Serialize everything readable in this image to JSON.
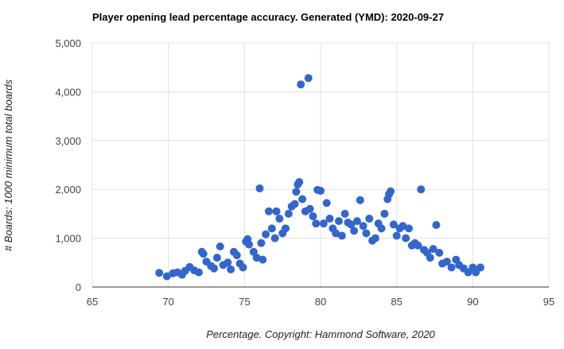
{
  "chart_data": {
    "type": "scatter",
    "title": "Player opening lead percentage accuracy. Generated (YMD): 2020-09-27",
    "xlabel": "Percentage. Copyright: Hammond Software, 2020",
    "ylabel": "# Boards: 1000 minimum total boards",
    "xlim": [
      65,
      95
    ],
    "ylim": [
      0,
      5000
    ],
    "x_ticks": [
      "65",
      "70",
      "75",
      "80",
      "85",
      "90",
      "95"
    ],
    "y_ticks": [
      "0",
      "1,000",
      "2,000",
      "3,000",
      "4,000",
      "5,000"
    ],
    "grid": true,
    "legend": "none",
    "point_color": "#3366cc",
    "points": [
      [
        69.4,
        290
      ],
      [
        69.9,
        220
      ],
      [
        70.3,
        280
      ],
      [
        70.6,
        300
      ],
      [
        70.9,
        250
      ],
      [
        71.1,
        330
      ],
      [
        71.4,
        410
      ],
      [
        71.7,
        340
      ],
      [
        72.0,
        300
      ],
      [
        72.2,
        720
      ],
      [
        72.3,
        680
      ],
      [
        72.5,
        520
      ],
      [
        72.8,
        430
      ],
      [
        73.0,
        380
      ],
      [
        73.2,
        600
      ],
      [
        73.4,
        830
      ],
      [
        73.6,
        450
      ],
      [
        73.9,
        500
      ],
      [
        74.1,
        360
      ],
      [
        74.3,
        720
      ],
      [
        74.5,
        650
      ],
      [
        74.7,
        480
      ],
      [
        74.9,
        400
      ],
      [
        75.1,
        930
      ],
      [
        75.2,
        980
      ],
      [
        75.3,
        870
      ],
      [
        75.6,
        720
      ],
      [
        75.8,
        600
      ],
      [
        76.0,
        2020
      ],
      [
        76.1,
        900
      ],
      [
        76.2,
        560
      ],
      [
        76.4,
        1080
      ],
      [
        76.6,
        1550
      ],
      [
        76.8,
        1200
      ],
      [
        77.0,
        1000
      ],
      [
        77.1,
        1550
      ],
      [
        77.3,
        1400
      ],
      [
        77.5,
        1100
      ],
      [
        77.7,
        1200
      ],
      [
        77.9,
        1500
      ],
      [
        78.1,
        1650
      ],
      [
        78.3,
        1700
      ],
      [
        78.4,
        1950
      ],
      [
        78.5,
        2100
      ],
      [
        78.6,
        2150
      ],
      [
        78.7,
        4150
      ],
      [
        78.8,
        1800
      ],
      [
        79.0,
        1550
      ],
      [
        79.2,
        4280
      ],
      [
        79.3,
        1600
      ],
      [
        79.5,
        1450
      ],
      [
        79.7,
        1300
      ],
      [
        79.8,
        1990
      ],
      [
        80.0,
        1970
      ],
      [
        80.2,
        1300
      ],
      [
        80.4,
        1720
      ],
      [
        80.6,
        1400
      ],
      [
        80.8,
        1200
      ],
      [
        81.0,
        1100
      ],
      [
        81.2,
        1350
      ],
      [
        81.4,
        1050
      ],
      [
        81.6,
        1500
      ],
      [
        81.8,
        1320
      ],
      [
        82.0,
        1280
      ],
      [
        82.2,
        1150
      ],
      [
        82.4,
        1350
      ],
      [
        82.6,
        1780
      ],
      [
        82.8,
        1250
      ],
      [
        83.0,
        1100
      ],
      [
        83.2,
        1400
      ],
      [
        83.4,
        950
      ],
      [
        83.6,
        1000
      ],
      [
        83.8,
        1300
      ],
      [
        84.0,
        1200
      ],
      [
        84.2,
        1500
      ],
      [
        84.4,
        1800
      ],
      [
        84.5,
        1900
      ],
      [
        84.6,
        1960
      ],
      [
        84.8,
        1280
      ],
      [
        85.0,
        1050
      ],
      [
        85.2,
        1200
      ],
      [
        85.4,
        1250
      ],
      [
        85.6,
        1000
      ],
      [
        85.8,
        1200
      ],
      [
        86.0,
        850
      ],
      [
        86.2,
        900
      ],
      [
        86.4,
        850
      ],
      [
        86.6,
        2000
      ],
      [
        86.8,
        760
      ],
      [
        87.0,
        700
      ],
      [
        87.2,
        600
      ],
      [
        87.4,
        780
      ],
      [
        87.6,
        1270
      ],
      [
        87.8,
        700
      ],
      [
        88.0,
        480
      ],
      [
        88.3,
        520
      ],
      [
        88.6,
        400
      ],
      [
        88.9,
        560
      ],
      [
        89.1,
        450
      ],
      [
        89.4,
        380
      ],
      [
        89.7,
        300
      ],
      [
        90.0,
        400
      ],
      [
        90.2,
        300
      ],
      [
        90.5,
        400
      ]
    ]
  }
}
